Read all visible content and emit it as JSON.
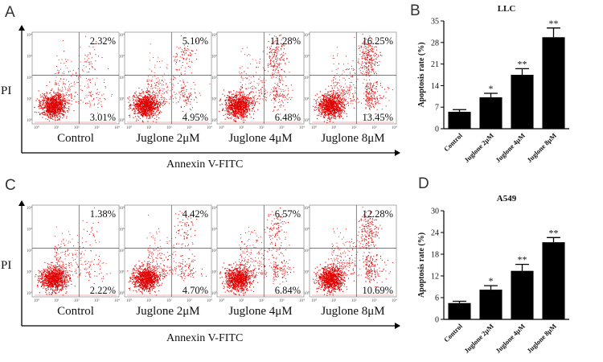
{
  "panel_labels": {
    "a": "A",
    "b": "B",
    "c": "C",
    "d": "D"
  },
  "flow": {
    "y_axis_label": "PI",
    "x_axis_label": "Annexin V-FITC",
    "log_ticks": [
      "10⁰",
      "10¹",
      "10²",
      "10³",
      "10⁴"
    ],
    "top": {
      "plots": [
        {
          "condition": "Control",
          "upper_right_pct": "2.32%",
          "lower_right_pct": "3.01%"
        },
        {
          "condition": "Juglone 2μM",
          "upper_right_pct": "5.10%",
          "lower_right_pct": "4.95%"
        },
        {
          "condition": "Juglone 4μM",
          "upper_right_pct": "11.28%",
          "lower_right_pct": "6.48%"
        },
        {
          "condition": "Juglone 8μM",
          "upper_right_pct": "16.25%",
          "lower_right_pct": "13.45%"
        }
      ]
    },
    "bottom": {
      "plots": [
        {
          "condition": "Control",
          "upper_right_pct": "1.38%",
          "lower_right_pct": "2.22%"
        },
        {
          "condition": "Juglone 2μM",
          "upper_right_pct": "4.42%",
          "lower_right_pct": "4.70%"
        },
        {
          "condition": "Juglone 4μM",
          "upper_right_pct": "6.57%",
          "lower_right_pct": "6.84%"
        },
        {
          "condition": "Juglone 8μM",
          "upper_right_pct": "12.28%",
          "lower_right_pct": "10.69%"
        }
      ]
    }
  },
  "chart_data": [
    {
      "type": "bar",
      "title": "LLC",
      "ylabel": "Apoptosis rate (%)",
      "xlabel": "",
      "categories": [
        "Control",
        "Juglone 2μM",
        "Juglone 4μM",
        "Juglone 8μM"
      ],
      "values": [
        5.5,
        10.2,
        17.5,
        29.7
      ],
      "errors": [
        0.7,
        1.3,
        2.0,
        3.0
      ],
      "significance": [
        "",
        "*",
        "**",
        "**"
      ],
      "ylim": [
        0,
        35
      ],
      "yticks": [
        "0",
        "7",
        "14",
        "21",
        "28",
        "35"
      ],
      "bar_color": "#000000"
    },
    {
      "type": "bar",
      "title": "A549",
      "ylabel": "Apoptosis rate (%)",
      "xlabel": "",
      "categories": [
        "Control",
        "Juglone 2μM",
        "Juglone 4μM",
        "Juglone 8μM"
      ],
      "values": [
        4.5,
        8.2,
        13.4,
        21.3
      ],
      "errors": [
        0.5,
        1.1,
        1.8,
        1.3
      ],
      "significance": [
        "",
        "*",
        "**",
        "**"
      ],
      "ylim": [
        0,
        30
      ],
      "yticks": [
        "0",
        "6",
        "12",
        "18",
        "24",
        "30"
      ],
      "bar_color": "#000000"
    }
  ]
}
